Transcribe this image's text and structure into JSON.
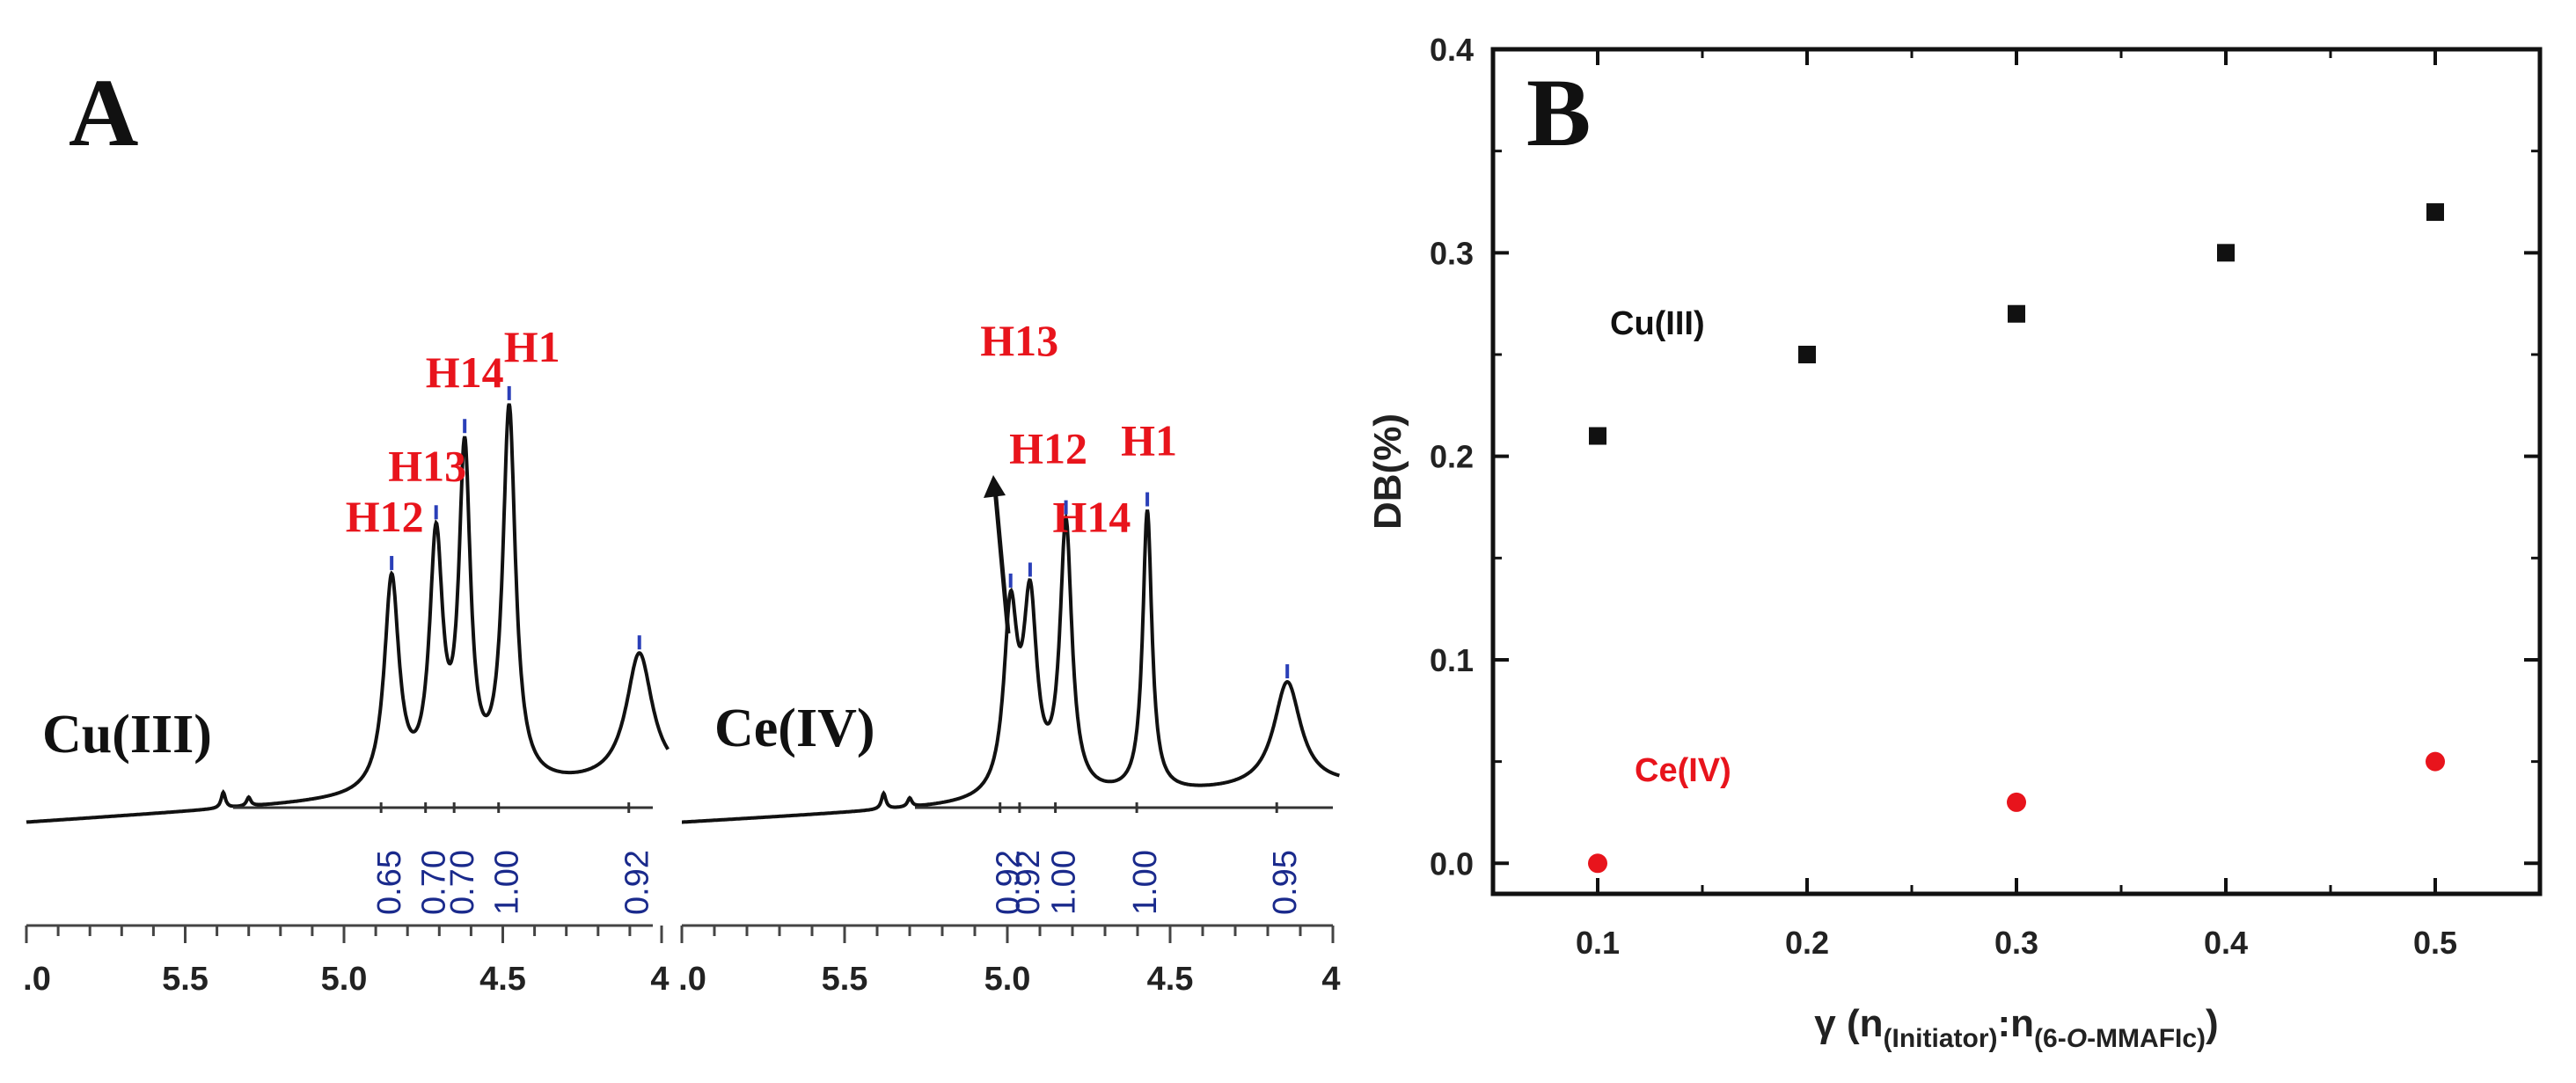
{
  "chart_data": [
    {
      "type": "nmr-spectrum",
      "panel": "A",
      "sample": "Cu(III)",
      "xlim": [
        6.0,
        4.0
      ],
      "x_ticks": [
        ".0",
        "5.5",
        "5.0",
        "4.5",
        "4"
      ],
      "peaks": [
        {
          "label": "H12",
          "ppm": 4.85
        },
        {
          "label": "H13",
          "ppm": 4.71
        },
        {
          "label": "H14",
          "ppm": 4.62
        },
        {
          "label": "H1",
          "ppm": 4.48
        },
        {
          "label": "",
          "ppm": 4.07
        }
      ],
      "integrals": [
        "0.65",
        "0.70",
        "0.70",
        "1.00",
        "0.92"
      ]
    },
    {
      "type": "nmr-spectrum",
      "panel": "A",
      "sample": "Ce(IV)",
      "xlim": [
        6.0,
        4.0
      ],
      "x_ticks": [
        ".0",
        "5.5",
        "5.0",
        "4.5",
        "4"
      ],
      "peaks": [
        {
          "label": "H12",
          "ppm": 4.82
        },
        {
          "label": "H13",
          "ppm": 4.99,
          "annotation": "arrow"
        },
        {
          "label": "H14",
          "ppm": 4.93
        },
        {
          "label": "H1",
          "ppm": 4.57
        },
        {
          "label": "",
          "ppm": 4.14
        }
      ],
      "integrals": [
        "1.00",
        "0.92",
        "0.92",
        "1.00",
        "0.95"
      ]
    },
    {
      "type": "scatter",
      "panel": "B",
      "xlabel": "γ (n(Initiator):n(6-O-MMAFIc))",
      "ylabel": "DB(%)",
      "xlim": [
        0.05,
        0.55
      ],
      "ylim": [
        -0.015,
        0.4
      ],
      "x_ticks": [
        "0.1",
        "0.2",
        "0.3",
        "0.4",
        "0.5"
      ],
      "y_ticks": [
        "0.0",
        "0.1",
        "0.2",
        "0.3",
        "0.4"
      ],
      "series": [
        {
          "name": "Cu(III)",
          "marker": "square",
          "color": "#111111",
          "x": [
            0.1,
            0.2,
            0.3,
            0.4,
            0.5
          ],
          "y": [
            0.21,
            0.25,
            0.27,
            0.3,
            0.32
          ]
        },
        {
          "name": "Ce(IV)",
          "marker": "circle",
          "color": "#e8141c",
          "x": [
            0.1,
            0.3,
            0.5
          ],
          "y": [
            0.0,
            0.03,
            0.05
          ]
        }
      ]
    }
  ],
  "labels": {
    "panel_a": "A",
    "panel_b": "B",
    "cu_sample": "Cu(III)",
    "ce_sample": "Ce(IV)",
    "cu_series": "Cu(III)",
    "ce_series": "Ce(IV)",
    "ylabel": "DB(%)",
    "xlabel_gamma": "γ (n",
    "xlabel_sub1": "(Initiator)",
    "xlabel_colon": ":n",
    "xlabel_sub2a": "(6-",
    "xlabel_sub2b": "O",
    "xlabel_sub2c": "-MMAFIc)",
    "xlabel_close": ")"
  }
}
